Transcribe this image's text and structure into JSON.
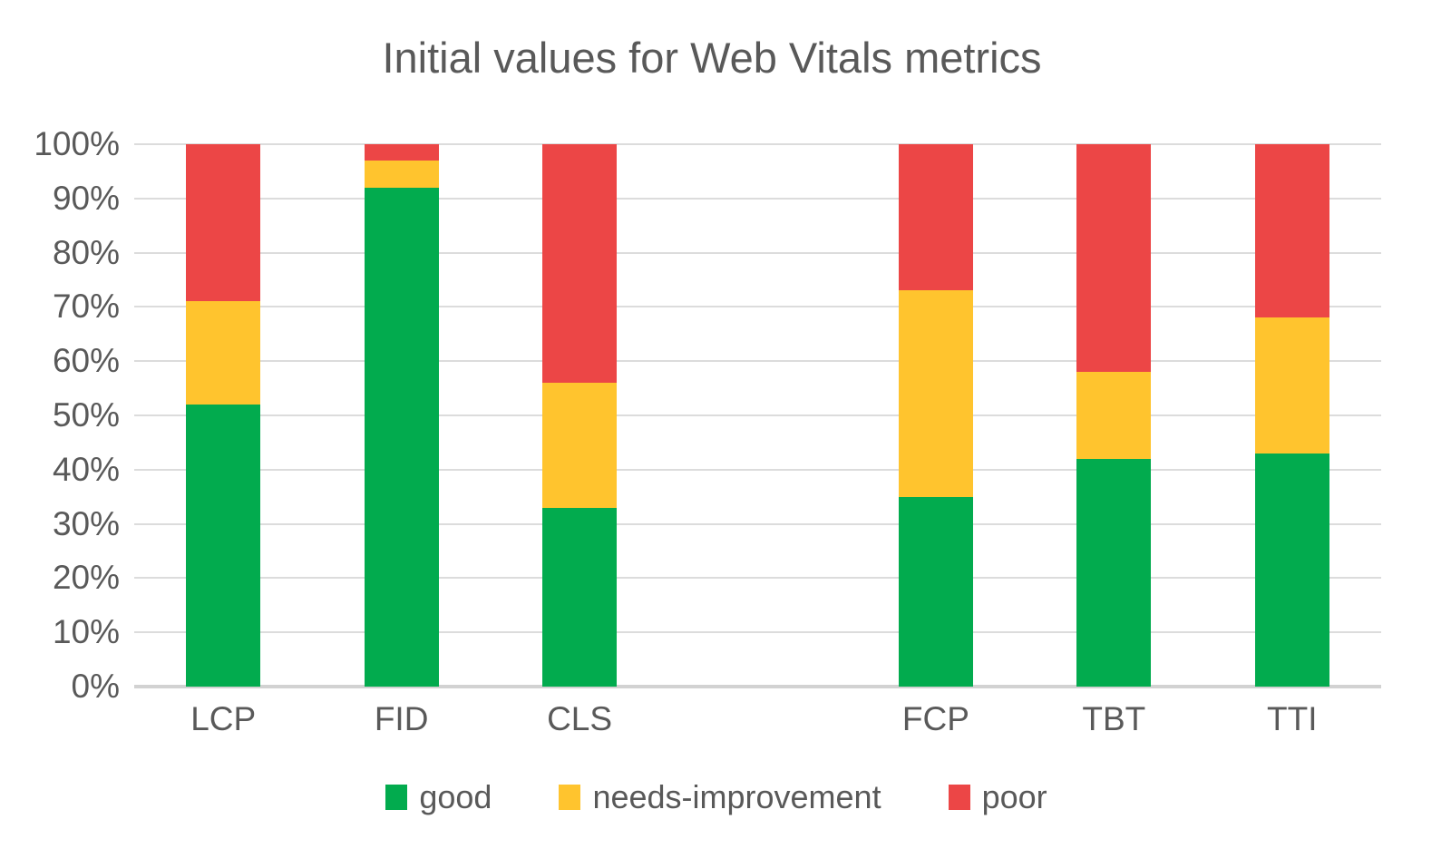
{
  "chart_data": {
    "type": "bar",
    "stacked": true,
    "percent_stacked": true,
    "title": "Initial values for Web Vitals metrics",
    "categories": [
      "LCP",
      "FID",
      "CLS",
      "",
      "FCP",
      "TBT",
      "TTI"
    ],
    "series": [
      {
        "name": "good",
        "color": "#02AB4E",
        "values": [
          52,
          92,
          33,
          null,
          35,
          42,
          43
        ]
      },
      {
        "name": "needs-improvement",
        "color": "#FFC42E",
        "values": [
          19,
          5,
          23,
          null,
          38,
          16,
          25
        ]
      },
      {
        "name": "poor",
        "color": "#EC4646",
        "values": [
          29,
          3,
          44,
          null,
          27,
          42,
          32
        ]
      }
    ],
    "y_axis": {
      "min": 0,
      "max": 100,
      "unit": "%",
      "ticks": [
        "0%",
        "10%",
        "20%",
        "30%",
        "40%",
        "50%",
        "60%",
        "70%",
        "80%",
        "90%",
        "100%"
      ]
    },
    "grid": true,
    "legend_position": "bottom"
  },
  "colors": {
    "text": "#595959",
    "gridline": "#DCDCDC",
    "axis_line": "#D2D2D2",
    "background": "#FFFFFF"
  }
}
